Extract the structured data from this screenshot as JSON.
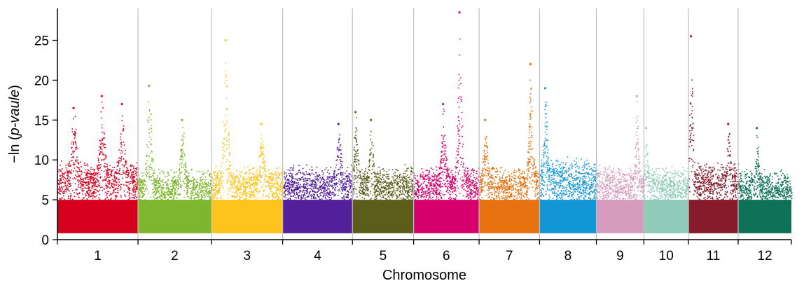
{
  "chart_data": {
    "type": "scatter",
    "title": "",
    "xlabel": "Chromosome",
    "ylabel_prefix": "−ln (",
    "ylabel_italic": "p-vaule",
    "ylabel_suffix": ")",
    "ylim": [
      0,
      29
    ],
    "yticks": [
      0,
      5,
      10,
      15,
      20,
      25
    ],
    "grid": "vertical separators between chromosomes",
    "chromosomes": [
      {
        "label": "1",
        "color": "#d7001f",
        "start": 0,
        "end": 11.2,
        "base": 8.5,
        "peaks": [
          {
            "pos": 0.2,
            "height": 16.5
          },
          {
            "pos": 0.55,
            "height": 18
          },
          {
            "pos": 0.8,
            "height": 17
          }
        ]
      },
      {
        "label": "2",
        "color": "#7fb62f",
        "start": 11.2,
        "end": 21.4,
        "base": 7.5,
        "peaks": [
          {
            "pos": 0.15,
            "height": 19.3
          },
          {
            "pos": 0.6,
            "height": 15
          }
        ]
      },
      {
        "label": "3",
        "color": "#fcc41c",
        "start": 21.4,
        "end": 31.3,
        "base": 8,
        "peaks": [
          {
            "pos": 0.2,
            "height": 25
          },
          {
            "pos": 0.7,
            "height": 14.5
          }
        ]
      },
      {
        "label": "4",
        "color": "#53209b",
        "start": 31.3,
        "end": 41.0,
        "base": 8,
        "peaks": [
          {
            "pos": 0.8,
            "height": 14.5
          }
        ]
      },
      {
        "label": "5",
        "color": "#5c5d1b",
        "start": 41.0,
        "end": 49.5,
        "base": 8,
        "peaks": [
          {
            "pos": 0.3,
            "height": 15
          },
          {
            "pos": 0.05,
            "height": 16
          }
        ]
      },
      {
        "label": "6",
        "color": "#d5006b",
        "start": 49.5,
        "end": 58.6,
        "base": 8,
        "peaks": [
          {
            "pos": 0.7,
            "height": 28.5
          },
          {
            "pos": 0.45,
            "height": 17
          }
        ]
      },
      {
        "label": "7",
        "color": "#e8720f",
        "start": 58.6,
        "end": 67.0,
        "base": 8,
        "peaks": [
          {
            "pos": 0.85,
            "height": 22
          },
          {
            "pos": 0.1,
            "height": 15
          }
        ]
      },
      {
        "label": "8",
        "color": "#1396d6",
        "start": 67.0,
        "end": 74.9,
        "base": 9,
        "peaks": [
          {
            "pos": 0.1,
            "height": 19
          }
        ]
      },
      {
        "label": "9",
        "color": "#d69cbd",
        "start": 74.9,
        "end": 81.5,
        "base": 8,
        "peaks": [
          {
            "pos": 0.85,
            "height": 18
          }
        ]
      },
      {
        "label": "10",
        "color": "#8fcbb8",
        "start": 81.5,
        "end": 87.7,
        "base": 8,
        "peaks": [
          {
            "pos": 0.05,
            "height": 14
          }
        ]
      },
      {
        "label": "11",
        "color": "#861b2b",
        "start": 87.7,
        "end": 94.6,
        "base": 8.5,
        "peaks": [
          {
            "pos": 0.05,
            "height": 25.5
          },
          {
            "pos": 0.8,
            "height": 14.5
          }
        ]
      },
      {
        "label": "12",
        "color": "#0e7356",
        "start": 94.6,
        "end": 102.0,
        "base": 7.5,
        "peaks": [
          {
            "pos": 0.35,
            "height": 14
          }
        ]
      }
    ]
  }
}
